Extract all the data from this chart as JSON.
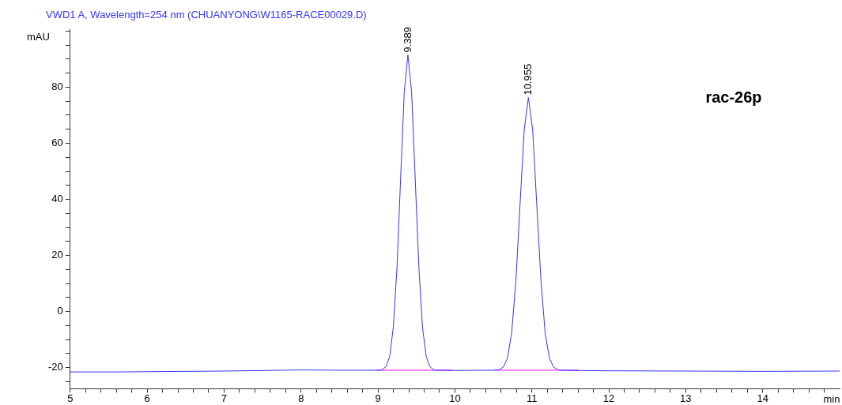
{
  "chart_data": {
    "type": "line",
    "title": "VWD1 A, Wavelength=254 nm (CHUANYONG\\W1165-RACE00029.D)",
    "ylabel": "mAU",
    "xlabel": "min",
    "xlim": [
      5,
      15
    ],
    "xticks": [
      5,
      {
        "value": 5.2,
        "label": null
      },
      {
        "value": 5.4,
        "label": null
      },
      {
        "value": 5.6,
        "label": null
      },
      {
        "value": 5.8,
        "label": null
      },
      6,
      {
        "value": 6.2,
        "label": null
      },
      {
        "value": 6.4,
        "label": null
      },
      {
        "value": 6.6,
        "label": null
      },
      {
        "value": 6.8,
        "label": null
      },
      7,
      {
        "value": 7.2,
        "label": null
      },
      {
        "value": 7.4,
        "label": null
      },
      {
        "value": 7.6,
        "label": null
      },
      {
        "value": 7.8,
        "label": null
      },
      8,
      {
        "value": 8.2,
        "label": null
      },
      {
        "value": 8.4,
        "label": null
      },
      {
        "value": 8.6,
        "label": null
      },
      {
        "value": 8.8,
        "label": null
      },
      9,
      {
        "value": 9.2,
        "label": null
      },
      {
        "value": 9.4,
        "label": null
      },
      {
        "value": 9.6,
        "label": null
      },
      {
        "value": 9.8,
        "label": null
      },
      10,
      {
        "value": 10.2,
        "label": null
      },
      {
        "value": 10.4,
        "label": null
      },
      {
        "value": 10.6,
        "label": null
      },
      {
        "value": 10.8,
        "label": null
      },
      11,
      {
        "value": 11.2,
        "label": null
      },
      {
        "value": 11.4,
        "label": null
      },
      {
        "value": 11.6,
        "label": null
      },
      {
        "value": 11.8,
        "label": null
      },
      12,
      {
        "value": 12.2,
        "label": null
      },
      {
        "value": 12.4,
        "label": null
      },
      {
        "value": 12.6,
        "label": null
      },
      {
        "value": 12.8,
        "label": null
      },
      13,
      {
        "value": 13.2,
        "label": null
      },
      {
        "value": 13.4,
        "label": null
      },
      {
        "value": 13.6,
        "label": null
      },
      {
        "value": 13.8,
        "label": null
      },
      14,
      {
        "value": 14.2,
        "label": null
      },
      {
        "value": 14.4,
        "label": null
      },
      {
        "value": 14.6,
        "label": null
      },
      {
        "value": 14.8,
        "label": null
      }
    ],
    "ylim": [
      -27.5,
      100.5
    ],
    "yticks": [
      {
        "value": -25,
        "label": null
      },
      -20,
      {
        "value": -15,
        "label": null
      },
      {
        "value": -10,
        "label": null
      },
      {
        "value": -5,
        "label": null
      },
      0,
      {
        "value": 5,
        "label": null
      },
      {
        "value": 10,
        "label": null
      },
      {
        "value": 15,
        "label": null
      },
      20,
      {
        "value": 25,
        "label": null
      },
      {
        "value": 30,
        "label": null
      },
      {
        "value": 35,
        "label": null
      },
      40,
      {
        "value": 45,
        "label": null
      },
      {
        "value": 50,
        "label": null
      },
      {
        "value": 55,
        "label": null
      },
      60,
      {
        "value": 65,
        "label": null
      },
      {
        "value": 70,
        "label": null
      },
      {
        "value": 75,
        "label": null
      },
      80,
      {
        "value": 85,
        "label": null
      },
      {
        "value": 90,
        "label": null
      },
      {
        "value": 95,
        "label": null
      },
      {
        "value": 100,
        "label": null
      }
    ],
    "grid": false,
    "legend": false,
    "marker": "none",
    "line_style": "solid",
    "series": [
      {
        "color": "#3333ff",
        "x": [
          5,
          5.7,
          6,
          7,
          8,
          8.5,
          9.009,
          9.057,
          9.104,
          9.152,
          9.199,
          9.247,
          9.294,
          9.342,
          9.389,
          9.437,
          9.484,
          9.532,
          9.579,
          9.627,
          9.674,
          9.722,
          9.769,
          10,
          10.519,
          10.574,
          10.628,
          10.683,
          10.737,
          10.792,
          10.846,
          10.901,
          10.955,
          11.01,
          11.064,
          11.119,
          11.173,
          11.228,
          11.282,
          11.337,
          11.391,
          11.6,
          12,
          13,
          14,
          15
        ],
        "values": [
          -21.5,
          -21.5,
          -21.4,
          -21.2,
          -20.8,
          -20.9,
          -20.9,
          -20.7,
          -19.6,
          -16,
          -5.7,
          15.6,
          47.3,
          78.3,
          91.5,
          78.3,
          47.3,
          15.6,
          -5.7,
          -16,
          -19.6,
          -20.7,
          -20.9,
          -21,
          -20.9,
          -20.7,
          -19.8,
          -16.6,
          -7.7,
          10.7,
          38,
          64.9,
          76.3,
          64.9,
          38,
          10.7,
          -7.7,
          -16.6,
          -19.8,
          -20.7,
          -20.9,
          -21,
          -21.1,
          -21.2,
          -21.3,
          -21.2
        ]
      },
      {
        "color": "#ff00ff",
        "x": [
          8.97,
          9.97
        ],
        "values": [
          -20.9,
          -20.9
        ]
      },
      {
        "color": "#ff00ff",
        "x": [
          10.52,
          11.6
        ],
        "values": [
          -20.9,
          -20.9
        ]
      }
    ],
    "annotations": [
      {
        "text": "9.389",
        "x": 9.389,
        "y": 91.5
      },
      {
        "text": "10.955",
        "x": 10.955,
        "y": 76.3
      },
      "rac-26p"
    ]
  }
}
